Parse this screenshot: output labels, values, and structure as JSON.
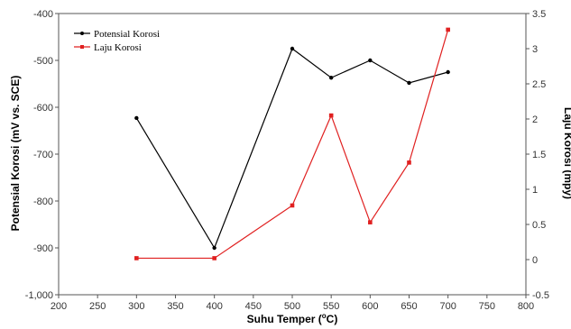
{
  "chart_data": {
    "type": "line",
    "xlabel": "Suhu Temper (",
    "xlabel_sup": "o",
    "xlabel_suffix": "C)",
    "ylabel_left": "Potensial Korosi (mV vs. SCE)",
    "ylabel_right": "Laju Korosi (mpy)",
    "xlim": [
      200,
      800
    ],
    "ylim_left": [
      -1000,
      -400
    ],
    "ylim_right": [
      -0.5,
      3.5
    ],
    "x_ticks": [
      200,
      250,
      300,
      350,
      400,
      450,
      500,
      550,
      600,
      650,
      700,
      750,
      800
    ],
    "left_ticks": [
      -1000,
      -900,
      -800,
      -700,
      -600,
      -500,
      -400
    ],
    "left_tick_labels": [
      "-1,000",
      "-900",
      "-800",
      "-700",
      "-600",
      "-500",
      "-400"
    ],
    "right_ticks": [
      -0.5,
      0,
      0.5,
      1,
      1.5,
      2,
      2.5,
      3,
      3.5
    ],
    "right_tick_labels": [
      "-0.5",
      "0",
      "0.5",
      "1",
      "1.5",
      "2",
      "2.5",
      "3",
      "3.5"
    ],
    "grid": false,
    "legend_position": "top-left",
    "series": [
      {
        "name": "Potensial Korosi",
        "axis": "left",
        "color": "#000000",
        "marker": "circle",
        "x": [
          300,
          400,
          500,
          550,
          600,
          650,
          700
        ],
        "y": [
          -623,
          -900,
          -475,
          -537,
          -500,
          -548,
          -525
        ]
      },
      {
        "name": "Laju Korosi",
        "axis": "right",
        "color": "#e02020",
        "marker": "square",
        "x": [
          300,
          400,
          500,
          550,
          600,
          650,
          700
        ],
        "y": [
          0.02,
          0.02,
          0.77,
          2.05,
          0.53,
          1.38,
          3.27
        ]
      }
    ]
  }
}
